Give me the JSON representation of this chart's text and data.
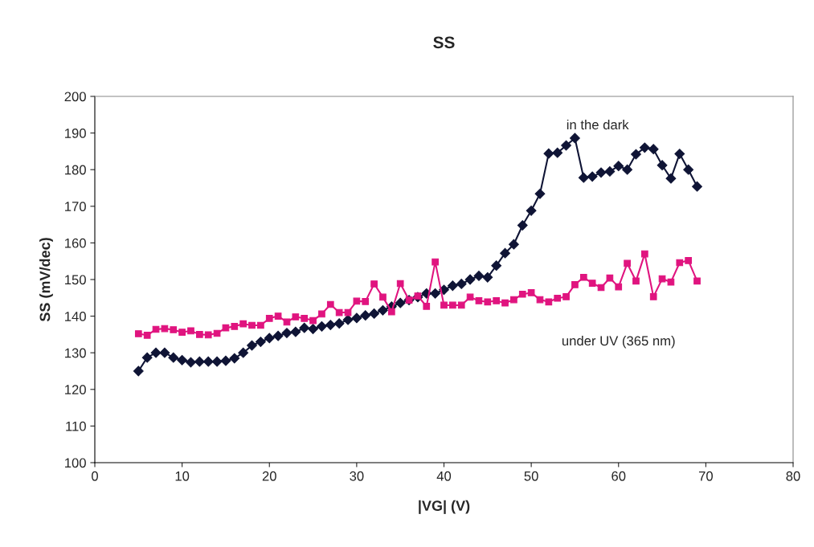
{
  "chart_data": {
    "type": "line",
    "title": "SS",
    "xlabel": "|VG| (V)",
    "ylabel": "SS (mV/dec)",
    "xlim": [
      0,
      80
    ],
    "xticks": [
      0,
      10,
      20,
      30,
      40,
      50,
      60,
      70,
      80
    ],
    "ylim": [
      100,
      200
    ],
    "yticks": [
      100,
      110,
      120,
      130,
      140,
      150,
      160,
      170,
      180,
      190,
      200
    ],
    "grid": false,
    "legend": false,
    "x": [
      5,
      6,
      7,
      8,
      9,
      10,
      11,
      12,
      13,
      14,
      15,
      16,
      17,
      18,
      19,
      20,
      21,
      22,
      23,
      24,
      25,
      26,
      27,
      28,
      29,
      30,
      31,
      32,
      33,
      34,
      35,
      36,
      37,
      38,
      39,
      40,
      41,
      42,
      43,
      44,
      45,
      46,
      47,
      48,
      49,
      50,
      51,
      52,
      53,
      54,
      55,
      56,
      57,
      58,
      59,
      60,
      61,
      62,
      63,
      64,
      65,
      66,
      67,
      68,
      69
    ],
    "series": [
      {
        "name": "in the dark",
        "color": "#0f1435",
        "marker": "diamond",
        "values": [
          125,
          128.7,
          130,
          130,
          128.7,
          128,
          127.4,
          127.6,
          127.6,
          127.6,
          127.8,
          128.5,
          130,
          132,
          133,
          134,
          134.6,
          135.4,
          135.7,
          136.8,
          136.5,
          137.2,
          137.6,
          138,
          139,
          139.5,
          140.2,
          140.7,
          141.6,
          142.6,
          143.6,
          144.4,
          145.2,
          146.2,
          146.2,
          147.2,
          148.3,
          148.8,
          150,
          151,
          150.6,
          153.8,
          157.2,
          159.6,
          164.8,
          168.8,
          173.4,
          184.4,
          184.6,
          186.6,
          188.6,
          177.8,
          178.1,
          179.2,
          179.5,
          181,
          180,
          184.2,
          186,
          185.6,
          181.2,
          177.6,
          184.3,
          180,
          175.4
        ]
      },
      {
        "name": "under UV (365 nm)",
        "color": "#e0147f",
        "marker": "square",
        "values": [
          135.2,
          134.8,
          136.4,
          136.6,
          136.3,
          135.6,
          136,
          135,
          134.9,
          135.3,
          136.8,
          137.2,
          137.9,
          137.5,
          137.5,
          139.4,
          140,
          138.4,
          139.8,
          139.4,
          138.8,
          140.6,
          143.2,
          141,
          141,
          144.1,
          144,
          148.8,
          145.2,
          141.2,
          148.9,
          144.4,
          145.5,
          142.7,
          154.8,
          143,
          143,
          143,
          145.2,
          144.2,
          143.9,
          144.2,
          143.6,
          144.5,
          146,
          146.4,
          144.5,
          143.9,
          144.9,
          145.3,
          148.6,
          150.6,
          149,
          147.8,
          150.4,
          148,
          154.4,
          149.6,
          157,
          145.3,
          150.2,
          149.3,
          154.6,
          155.2,
          149.6
        ]
      }
    ]
  }
}
